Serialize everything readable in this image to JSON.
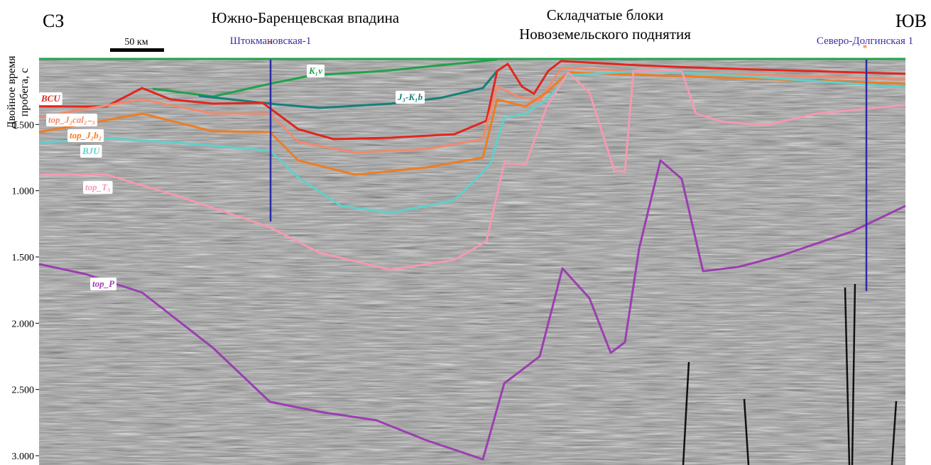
{
  "header": {
    "left_label": "СЗ",
    "right_label": "ЮВ",
    "title_left": "Южно-Баренцевская впадина",
    "title_right": [
      "Складчатые блоки",
      "Новоземельского поднятия"
    ],
    "scale_bar": "50 км"
  },
  "wells": [
    {
      "name": "Штокмановская-1"
    },
    {
      "name": "Северо-Долгинская 1"
    }
  ],
  "axis": {
    "label": [
      "Двойное время",
      "пробега, с"
    ],
    "ylim": [
      0,
      3.07
    ],
    "ticks": [
      {
        "value": 0.5,
        "label": "0.500"
      },
      {
        "value": 1.0,
        "label": "1.000"
      },
      {
        "value": 1.5,
        "label": "1.500"
      },
      {
        "value": 2.0,
        "label": "2.000"
      },
      {
        "value": 2.5,
        "label": "2.500"
      },
      {
        "value": 3.0,
        "label": "3.000"
      }
    ]
  },
  "horizons": [
    {
      "name": "K₁v",
      "color": "#1fa34a"
    },
    {
      "name": "J₃-K₁b",
      "color": "#14807a"
    },
    {
      "name": "BCU",
      "color": "#e2261c"
    },
    {
      "name": "top_J₂cal₂₋₃",
      "color": "#f08a6e"
    },
    {
      "name": "top_J₂b₂",
      "color": "#ef7d22"
    },
    {
      "name": "BJU",
      "color": "#5fd0cc"
    },
    {
      "name": "top_T₃",
      "color": "#f49ab0"
    },
    {
      "name": "top_P",
      "color": "#9b3fb0"
    }
  ]
}
